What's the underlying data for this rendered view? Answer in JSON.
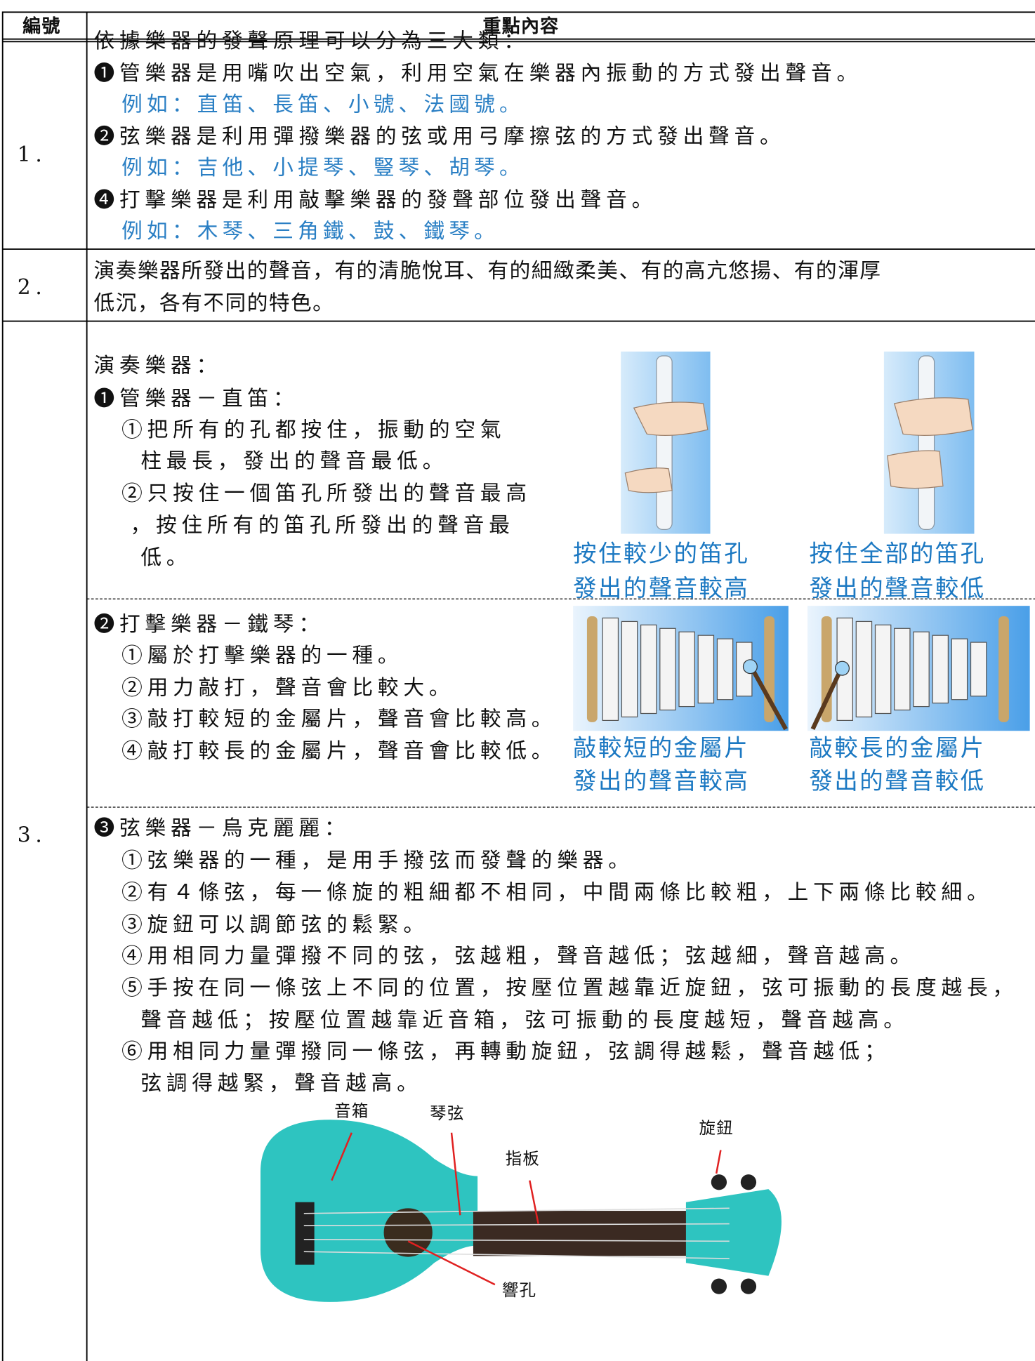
{
  "header": {
    "number": "編號",
    "content": "重點內容"
  },
  "rows": [
    {
      "number": "1.",
      "lines": [
        "依據樂器的發聲原理可以分為三大類：",
        "❶管樂器是用嘴吹出空氣，利用空氣在樂器內振動的方式發出聲音。",
        "例如：直笛、長笛、小號、法國號。",
        "❷弦樂器是利用彈撥樂器的弦或用弓摩擦弦的方式發出聲音。",
        "例如：吉他、小提琴、豎琴、胡琴。",
        "❹打擊樂器是利用敲擊樂器的發聲部位發出聲音。",
        "例如：木琴、三角鐵、鼓、鐵琴。"
      ]
    },
    {
      "number": "2.",
      "lines": [
        "演奏樂器所發出的聲音，有的清脆悅耳、有的細緻柔美、有的高亢悠揚、有的渾厚",
        "低沉，各有不同的特色。"
      ]
    },
    {
      "number": "3.",
      "sections": [
        {
          "lines": [
            "演奏樂器：",
            "❶管樂器－直笛：",
            "①把所有的孔都按住，振動的空氣",
            "柱最長，發出的聲音最低。",
            "②只按住一個笛孔所發出的聲音最高",
            "，按住所有的笛孔所發出的聲音最",
            "低。"
          ],
          "figures": [
            {
              "caption": [
                "按住較少的笛孔",
                "發出的聲音較高"
              ]
            },
            {
              "caption": [
                "按住全部的笛孔",
                "發出的聲音較低"
              ]
            }
          ]
        },
        {
          "lines": [
            "❷打擊樂器－鐵琴：",
            "①屬於打擊樂器的一種。",
            "②用力敲打，聲音會比較大。",
            "③敲打較短的金屬片，聲音會比較高。",
            "④敲打較長的金屬片，聲音會比較低。"
          ],
          "figures": [
            {
              "caption": [
                "敲較短的金屬片",
                "發出的聲音較高"
              ]
            },
            {
              "caption": [
                "敲較長的金屬片",
                "發出的聲音較低"
              ]
            }
          ]
        },
        {
          "lines": [
            "❸弦樂器－烏克麗麗：",
            "①弦樂器的一種，是用手撥弦而發聲的樂器。",
            "②有４條弦，每一條旋的粗細都不相同，中間兩條比較粗，上下兩條比較細。",
            "③旋鈕可以調節弦的鬆緊。",
            "④用相同力量彈撥不同的弦，弦越粗，聲音越低；弦越細，聲音越高。",
            "⑤手按在同一條弦上不同的位置，按壓位置越靠近旋鈕，弦可振動的長度越長，",
            "聲音越低；按壓位置越靠近音箱，弦可振動的長度越短，聲音越高。",
            "⑥用相同力量彈撥同一條弦，再轉動旋鈕，弦調得越鬆，聲音越低；",
            "弦調得越緊，聲音越高。"
          ],
          "labels": [
            "音箱",
            "琴弦",
            "指板",
            "旋鈕",
            "響孔"
          ]
        }
      ]
    }
  ]
}
